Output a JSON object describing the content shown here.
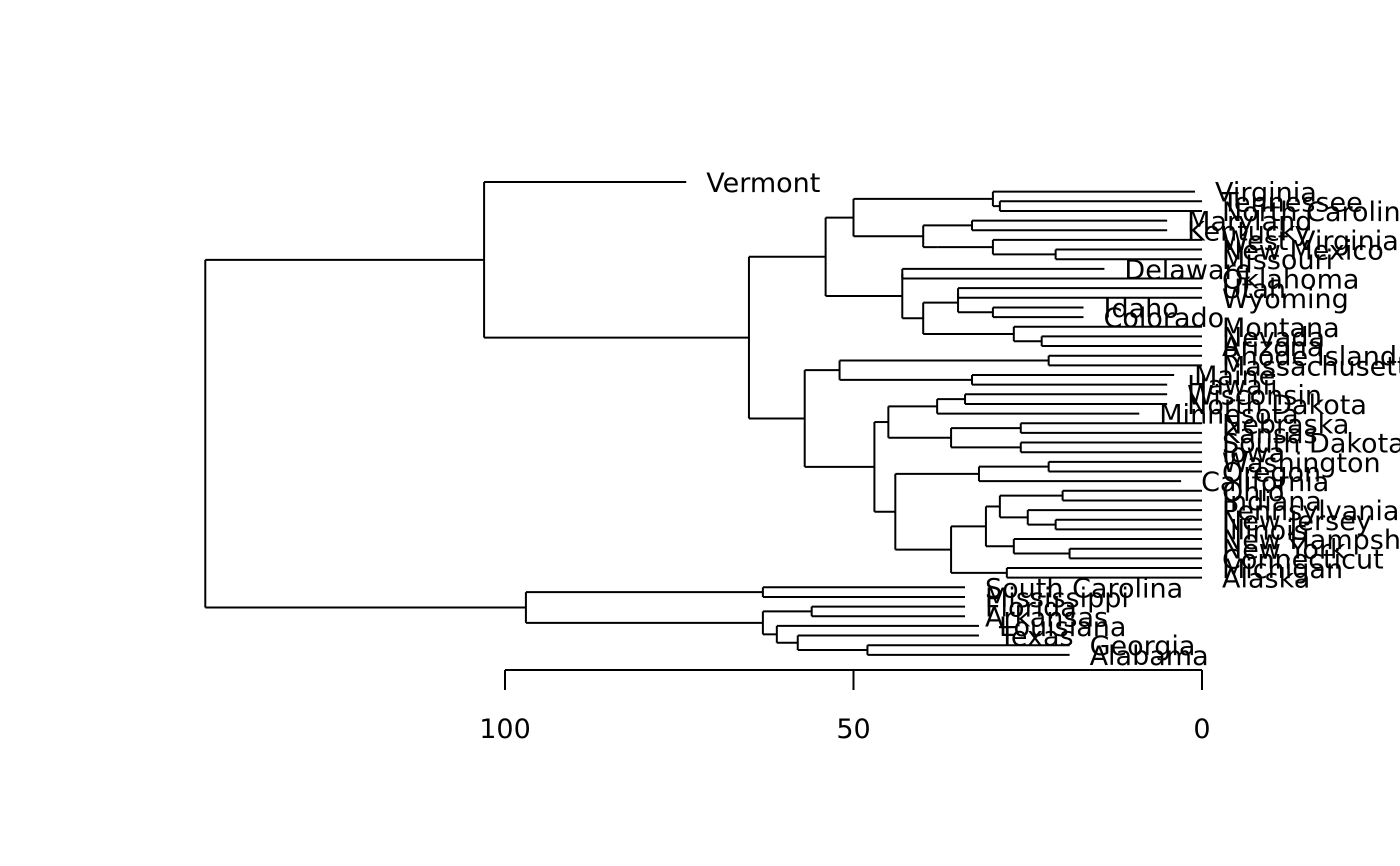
{
  "chart_data": {
    "type": "dendrogram",
    "orientation": "horizontal",
    "axis": {
      "ticks": [
        100,
        50,
        0
      ],
      "labels": [
        "100",
        "50",
        "0"
      ]
    },
    "leaves": [
      "Vermont",
      "Virginia",
      "Tennessee",
      "North Carolina",
      "Maryland",
      "Kentucky",
      "West Virginia",
      "New Mexico",
      "Missouri",
      "Delaware",
      "Oklahoma",
      "Utah",
      "Wyoming",
      "Idaho",
      "Colorado",
      "Montana",
      "Nevada",
      "Arizona",
      "Rhode Island",
      "Massachusetts",
      "Maine",
      "Hawaii",
      "Wisconsin",
      "North Dakota",
      "Minnesota",
      "Nebraska",
      "Kansas",
      "South Dakota",
      "Iowa",
      "Washington",
      "Oregon",
      "California",
      "Ohio",
      "Indiana",
      "Pennsylvania",
      "New Jersey",
      "Illinois",
      "New Hampshire",
      "New York",
      "Connecticut",
      "Michigan",
      "Alaska",
      "South Carolina",
      "Mississippi",
      "Florida",
      "Arkansas",
      "Louisiana",
      "Texas",
      "Georgia",
      "Alabama"
    ],
    "tree": {
      "h": 143,
      "c": [
        {
          "h": 103,
          "c": [
            {
              "h": 74,
              "c": [
                "Vermont"
              ]
            },
            {
              "h": 65,
              "c": [
                {
                  "h": 54,
                  "c": [
                    {
                      "h": 50,
                      "c": [
                        {
                          "h": 30,
                          "c": [
                            {
                              "h": 30,
                              "c": [
                                "Virginia"
                              ]
                            },
                            {
                              "h": 29,
                              "c": [
                                "Tennessee",
                                "North Carolina"
                              ]
                            }
                          ]
                        },
                        {
                          "h": 40,
                          "c": [
                            {
                              "h": 33,
                              "c": [
                                "Maryland",
                                "Kentucky"
                              ]
                            },
                            {
                              "h": 38,
                              "c": [
                                {
                                  "h": 30,
                                  "c": [
                                    "West Virginia",
                                    {
                                      "h": 21,
                                      "c": [
                                        "New Mexico",
                                        "Missouri"
                                      ]
                                    }
                                  ]
                                }
                              ]
                            }
                          ]
                        }
                      ]
                    },
                    {
                      "h": 43,
                      "c": [
                        {
                          "h": 43,
                          "c": [
                            "Delaware",
                            "Oklahoma"
                          ]
                        },
                        {
                          "h": 40,
                          "c": [
                            {
                              "h": 35,
                              "c": [
                                {
                                  "h": 35,
                                  "c": [
                                    "Utah",
                                    "Wyoming"
                                  ]
                                },
                                {
                                  "h": 30,
                                  "c": [
                                    "Idaho",
                                    "Colorado"
                                  ]
                                }
                              ]
                            },
                            {
                              "h": 27,
                              "c": [
                                "Montana",
                                {
                                  "h": 23,
                                  "c": [
                                    "Nevada",
                                    "Arizona"
                                  ]
                                }
                              ]
                            }
                          ]
                        }
                      ]
                    }
                  ]
                },
                {
                  "h": 57,
                  "c": [
                    {
                      "h": 52,
                      "c": [
                        {
                          "h": 22,
                          "c": [
                            "Rhode Island",
                            "Massachusetts"
                          ]
                        },
                        {
                          "h": 33,
                          "c": [
                            "Maine",
                            "Hawaii"
                          ]
                        }
                      ]
                    },
                    {
                      "h": 47,
                      "c": [
                        {
                          "h": 45,
                          "c": [
                            {
                              "h": 38,
                              "c": [
                                {
                                  "h": 34,
                                  "c": [
                                    "Wisconsin",
                                    "North Dakota"
                                  ]
                                },
                                "Minnesota"
                              ]
                            },
                            {
                              "h": 36,
                              "c": [
                                {
                                  "h": 26,
                                  "c": [
                                    "Nebraska",
                                    "Kansas"
                                  ]
                                },
                                {
                                  "h": 26,
                                  "c": [
                                    "South Dakota",
                                    "Iowa"
                                  ]
                                }
                              ]
                            }
                          ]
                        },
                        {
                          "h": 44,
                          "c": [
                            {
                              "h": 32,
                              "c": [
                                {
                                  "h": 22,
                                  "c": [
                                    "Washington",
                                    "Oregon"
                                  ]
                                },
                                "California"
                              ]
                            },
                            {
                              "h": 36,
                              "c": [
                                {
                                  "h": 31,
                                  "c": [
                                    {
                                      "h": 29,
                                      "c": [
                                        {
                                          "h": 20,
                                          "c": [
                                            "Ohio",
                                            "Indiana"
                                          ]
                                        },
                                        {
                                          "h": 25,
                                          "c": [
                                            "Pennsylvania",
                                            {
                                              "h": 21,
                                              "c": [
                                                "New Jersey",
                                                "Illinois"
                                              ]
                                            }
                                          ]
                                        }
                                      ]
                                    },
                                    {
                                      "h": 27,
                                      "c": [
                                        "New Hampshire",
                                        {
                                          "h": 19,
                                          "c": [
                                            "New York",
                                            "Connecticut"
                                          ]
                                        }
                                      ]
                                    }
                                  ]
                                },
                                {
                                  "h": 28,
                                  "c": [
                                    "Michigan",
                                    "Alaska"
                                  ]
                                }
                              ]
                            }
                          ]
                        }
                      ]
                    }
                  ]
                }
              ]
            }
          ]
        },
        {
          "h": 97,
          "c": [
            {
              "h": 63,
              "c": [
                "South Carolina",
                "Mississippi"
              ]
            },
            {
              "h": 63,
              "c": [
                {
                  "h": 56,
                  "c": [
                    "Florida",
                    "Arkansas"
                  ]
                },
                {
                  "h": 61,
                  "c": [
                    "Louisiana",
                    {
                      "h": 58,
                      "c": [
                        "Texas",
                        {
                          "h": 48,
                          "c": [
                            "Georgia",
                            "Alabama"
                          ]
                        }
                      ]
                    }
                  ]
                }
              ]
            }
          ]
        }
      ]
    }
  }
}
